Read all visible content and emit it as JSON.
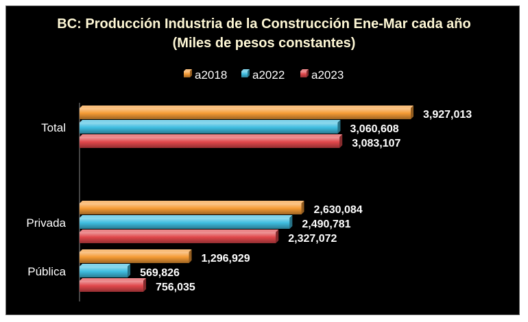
{
  "chart_data": {
    "type": "bar",
    "orientation": "horizontal",
    "title": "BC: Producción Industria de la Construcción Ene-Mar cada año",
    "subtitle": "(Miles de pesos constantes)",
    "categories": [
      "Total",
      "Privada",
      "Pública"
    ],
    "series": [
      {
        "name": "a2018",
        "color": "#f59b35",
        "values": [
          3927013,
          2630084,
          1296929
        ]
      },
      {
        "name": "a2022",
        "color": "#3fbde0",
        "values": [
          3060608,
          2490781,
          569826
        ]
      },
      {
        "name": "a2023",
        "color": "#e0474b",
        "values": [
          3083107,
          2327072,
          756035
        ]
      }
    ],
    "value_labels": [
      [
        "3,927,013",
        "2,630,084",
        "1,296,929"
      ],
      [
        "3,060,608",
        "2,490,781",
        "569,826"
      ],
      [
        "3,083,107",
        "2,327,072",
        "756,035"
      ]
    ],
    "xlim": [
      0,
      4000000
    ],
    "legend_position": "top",
    "grid": false
  }
}
